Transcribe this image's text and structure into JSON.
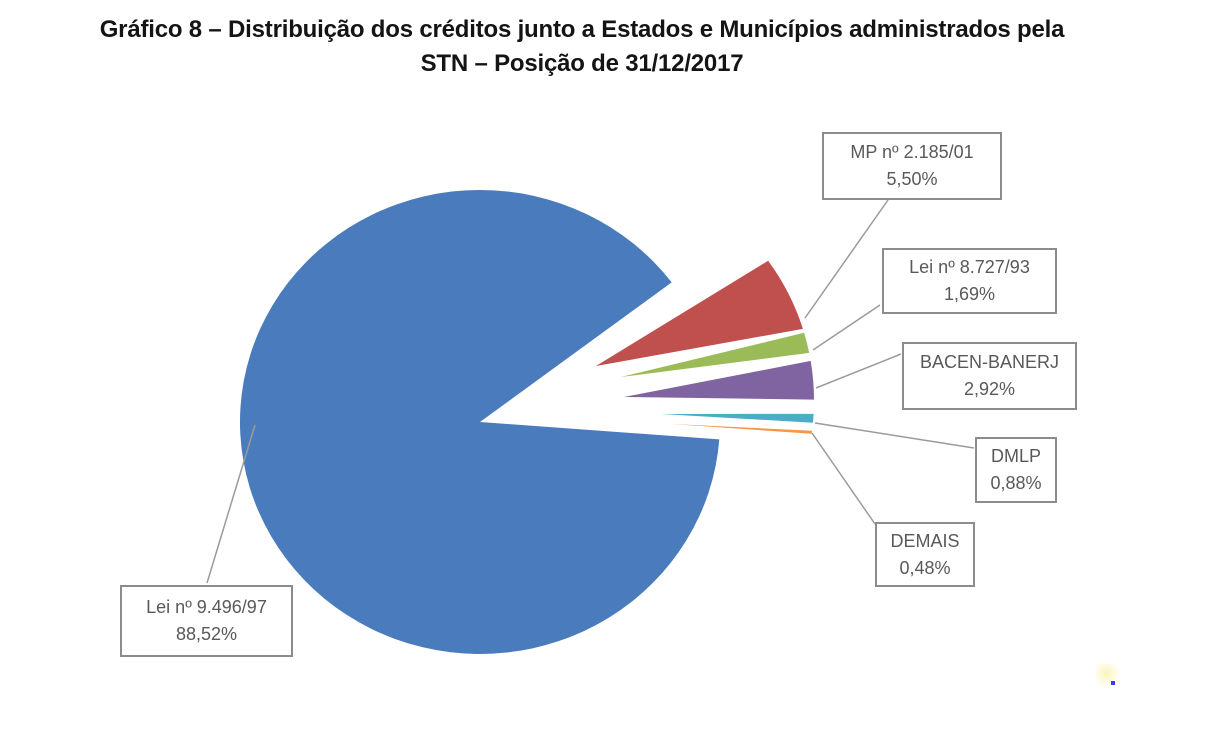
{
  "title": {
    "line1": "Gráfico 8 – Distribuição dos créditos junto a Estados e Municípios administrados pela",
    "line2": "STN – Posição de 31/12/2017"
  },
  "chart_data": {
    "type": "pie",
    "title": "Gráfico 8 – Distribuição dos créditos junto a Estados e Municípios administrados pela STN – Posição de 31/12/2017",
    "unit": "%",
    "legend": "none",
    "label_style": "callout-boxes-with-leader-lines",
    "slices": [
      {
        "label": "Lei nº 9.496/97",
        "value": 88.52,
        "percent_label": "88,52%",
        "color": "#4A7CBD",
        "exploded": false
      },
      {
        "label": "MP nº 2.185/01",
        "value": 5.5,
        "percent_label": "5,50%",
        "color": "#C0504D",
        "exploded": true
      },
      {
        "label": "Lei nº 8.727/93",
        "value": 1.69,
        "percent_label": "1,69%",
        "color": "#9BBB59",
        "exploded": true
      },
      {
        "label": "BACEN-BANERJ",
        "value": 2.92,
        "percent_label": "2,92%",
        "color": "#8064A2",
        "exploded": true
      },
      {
        "label": "DMLP",
        "value": 0.88,
        "percent_label": "0,88%",
        "color": "#4BACC6",
        "exploded": true
      },
      {
        "label": "DEMAIS",
        "value": 0.48,
        "percent_label": "0,48%",
        "color": "#F79646",
        "exploded": true
      }
    ]
  }
}
